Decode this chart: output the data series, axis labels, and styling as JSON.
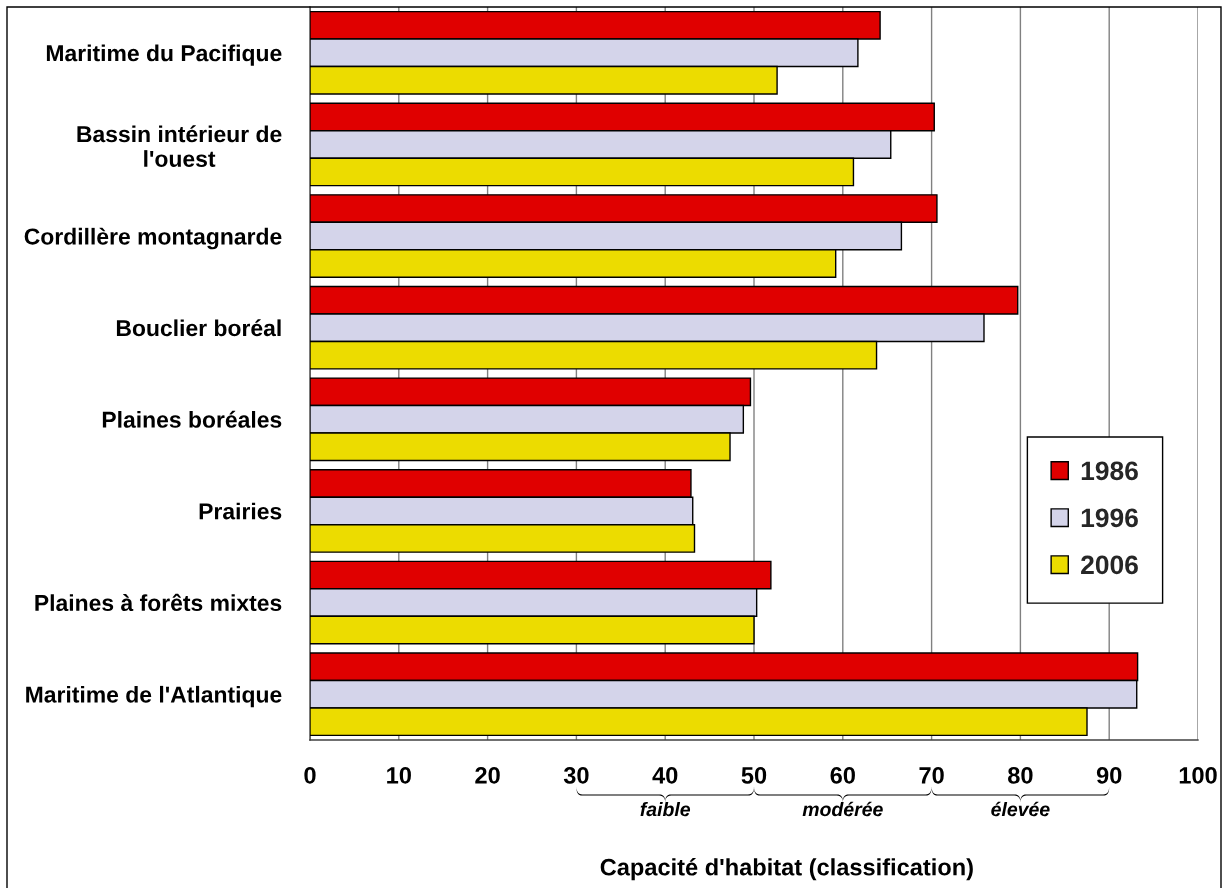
{
  "chart_data": {
    "type": "bar",
    "orientation": "horizontal",
    "categories": [
      "Maritime du Pacifique",
      "Bassin intérieur de\nl'ouest",
      "Cordillère montagnarde",
      "Bouclier boréal",
      "Plaines boréales",
      "Prairies",
      "Plaines à forêts mixtes",
      "Maritime de l'Atlantique"
    ],
    "series": [
      {
        "name": "1986",
        "color": "#e00000",
        "values": [
          64.2,
          70.3,
          70.6,
          79.7,
          49.6,
          42.9,
          51.9,
          93.2
        ]
      },
      {
        "name": "1996",
        "color": "#d4d4ea",
        "values": [
          61.7,
          65.4,
          66.6,
          75.9,
          48.8,
          43.1,
          50.3,
          93.1
        ]
      },
      {
        "name": "2006",
        "color": "#ecdc00",
        "values": [
          52.6,
          61.2,
          59.2,
          63.8,
          47.3,
          43.3,
          50.0,
          87.5
        ]
      }
    ],
    "xlim": [
      0,
      100
    ],
    "xticks": [
      0,
      10,
      20,
      30,
      40,
      50,
      60,
      70,
      80,
      90,
      100
    ],
    "xlabel": "Capacité d'habitat (classification)",
    "grid": "x",
    "legend": "right",
    "annotations": [
      "faible",
      "modérée",
      "élevée"
    ]
  }
}
